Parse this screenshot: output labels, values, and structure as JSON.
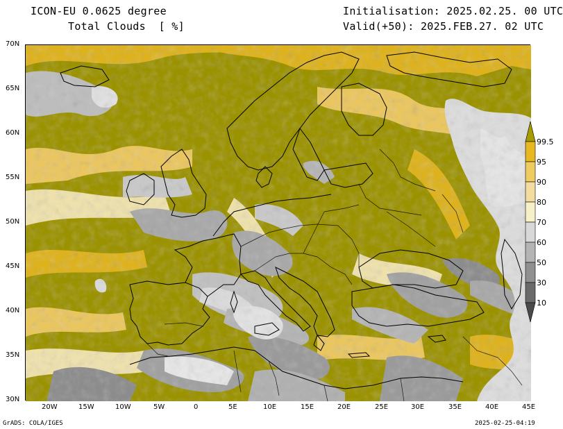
{
  "header": {
    "model": "ICON-EU 0.0625 degree",
    "field": "Total Clouds  [ %]",
    "init": "Initialisation: 2025.02.25. 00 UTC",
    "valid": "Valid(+50): 2025.FEB.27. 02 UTC"
  },
  "axes": {
    "lon_ticks": [
      "20W",
      "15W",
      "10W",
      "5W",
      "0",
      "5E",
      "10E",
      "15E",
      "20E",
      "25E",
      "30E",
      "35E",
      "40E",
      "45E"
    ],
    "lat_ticks": [
      "70N",
      "65N",
      "60N",
      "55N",
      "50N",
      "45N",
      "40N",
      "35N",
      "30N"
    ]
  },
  "colorbar": {
    "labels": [
      "99.5",
      "95",
      "90",
      "80",
      "70",
      "60",
      "50",
      "30",
      "10"
    ],
    "colors": [
      "#a89b00",
      "#e8b820",
      "#f0cc60",
      "#f4dca0",
      "#f6f0c8",
      "#d8d8d8",
      "#b4b4b4",
      "#909090",
      "#6a6a6a",
      "#4a4a4a"
    ]
  },
  "footer": {
    "left": "GrADS: COLA/IGES",
    "right": "2025-02-25-04:19"
  },
  "palette": {
    "olive": "#9b9200",
    "gold": "#e2b41e",
    "light_gold": "#efc964",
    "cream": "#f3e6b6",
    "light_gray": "#dadada",
    "mid_gray": "#a8a8a8",
    "dark_gray": "#787878"
  }
}
